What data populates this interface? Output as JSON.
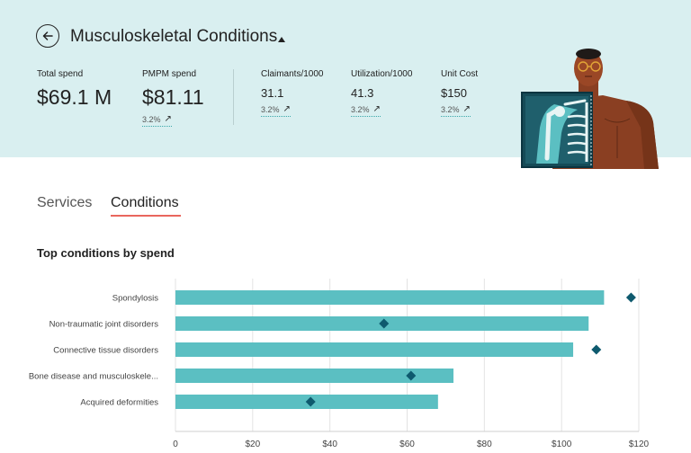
{
  "header": {
    "title": "Musculoskeletal Conditions",
    "back_icon": "arrow-left-icon",
    "caret_icon": "caret-up-icon",
    "illustration": "xray-person-illustration"
  },
  "metrics": {
    "total_spend": {
      "label": "Total spend",
      "value": "$69.1 M"
    },
    "pmpm": {
      "label": "PMPM spend",
      "value": "$81.11",
      "change": "3.2%"
    },
    "claimants": {
      "label": "Claimants/1000",
      "value": "31.1",
      "change": "3.2%"
    },
    "utilization": {
      "label": "Utilization/1000",
      "value": "41.3",
      "change": "3.2%"
    },
    "unit_cost": {
      "label": "Unit Cost",
      "value": "$150",
      "change": "3.2%"
    }
  },
  "tabs": {
    "services": "Services",
    "conditions": "Conditions",
    "active": "conditions"
  },
  "colors": {
    "bar": "#5bbfc2",
    "marker": "#0e5a6e",
    "header_bg": "#d9eff0",
    "tab_underline": "#e9665d"
  },
  "chart_data": {
    "type": "bar",
    "orientation": "horizontal",
    "title": "Top conditions by spend",
    "categories": [
      "Spondylosis",
      "Non-traumatic joint disorders",
      "Connective tissue disorders",
      "Bone disease and musculoskele...",
      "Acquired deformities"
    ],
    "values": [
      111,
      107,
      103,
      72,
      68
    ],
    "markers": [
      118,
      54,
      109,
      61,
      35
    ],
    "xlim": [
      0,
      120
    ],
    "ticks": [
      0,
      20,
      40,
      60,
      80,
      100,
      120
    ],
    "tick_labels": [
      "0",
      "$20",
      "$40",
      "$60",
      "$80",
      "$100",
      "$120"
    ],
    "grid": true
  }
}
